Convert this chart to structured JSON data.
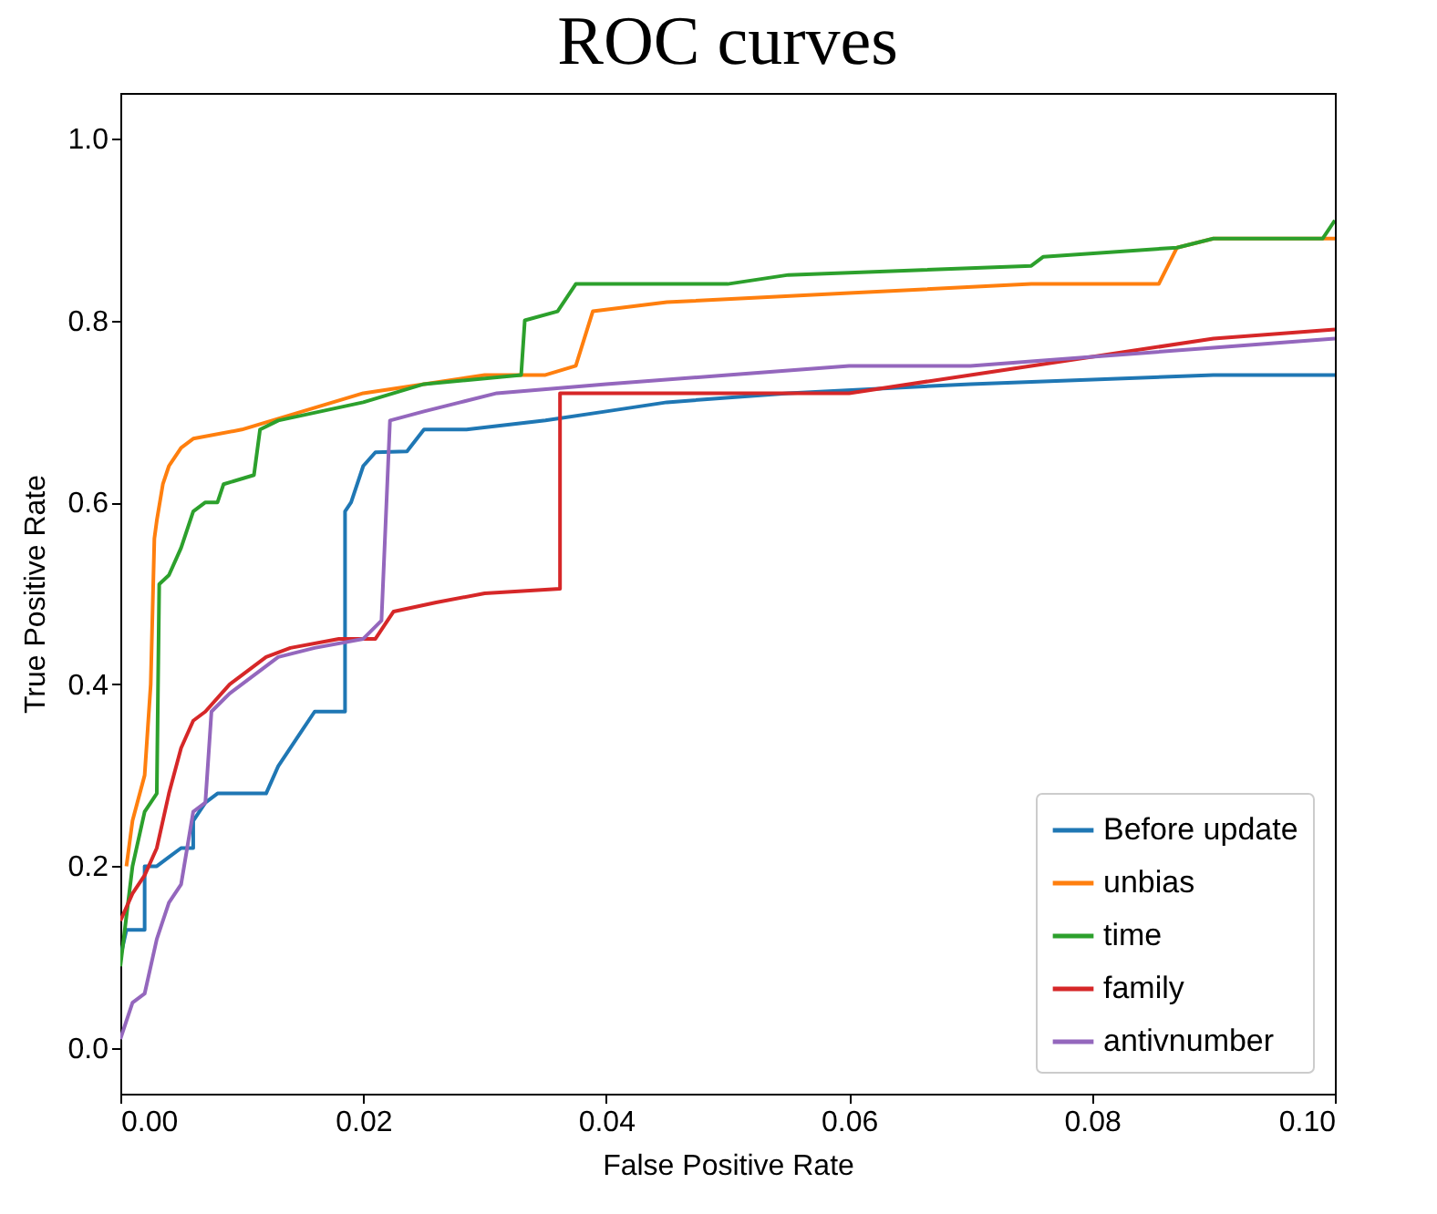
{
  "chart_data": {
    "type": "line",
    "title": "ROC curves",
    "xlabel": "False Positive Rate",
    "ylabel": "True Positive Rate",
    "xlim": [
      0,
      0.1
    ],
    "ylim": [
      -0.05,
      1.05
    ],
    "xticks": [
      {
        "value": 0,
        "label": "0.00"
      },
      {
        "value": 0.02,
        "label": "0.02"
      },
      {
        "value": 0.04,
        "label": "0.04"
      },
      {
        "value": 0.06,
        "label": "0.06"
      },
      {
        "value": 0.08,
        "label": "0.08"
      },
      {
        "value": 0.1,
        "label": "0.10"
      }
    ],
    "yticks": [
      {
        "value": 0,
        "label": "0.0"
      },
      {
        "value": 0.2,
        "label": "0.2"
      },
      {
        "value": 0.4,
        "label": "0.4"
      },
      {
        "value": 0.6,
        "label": "0.6"
      },
      {
        "value": 0.8,
        "label": "0.8"
      },
      {
        "value": 1,
        "label": "1.0"
      }
    ],
    "grid": false,
    "legend": "bottom right",
    "line_style": "solid",
    "marker": "none",
    "series": [
      {
        "name": "Before update",
        "color": "#1f77b4",
        "x": [
          0,
          0.0005,
          0.002,
          0.002,
          0.003,
          0.004,
          0.005,
          0.006,
          0.006,
          0.007,
          0.008,
          0.012,
          0.013,
          0.014,
          0.015,
          0.016,
          0.0185,
          0.0185,
          0.019,
          0.02,
          0.021,
          0.0236,
          0.025,
          0.0285,
          0.035,
          0.04,
          0.045,
          0.055,
          0.07,
          0.09,
          0.1
        ],
        "values": [
          0.1,
          0.13,
          0.13,
          0.2,
          0.2,
          0.21,
          0.22,
          0.22,
          0.25,
          0.27,
          0.28,
          0.28,
          0.31,
          0.33,
          0.35,
          0.37,
          0.37,
          0.59,
          0.6,
          0.64,
          0.655,
          0.656,
          0.68,
          0.68,
          0.69,
          0.7,
          0.71,
          0.72,
          0.73,
          0.74,
          0.74
        ]
      },
      {
        "name": "unbias",
        "color": "#ff7f0e",
        "x": [
          0.0005,
          0.001,
          0.002,
          0.0025,
          0.0028,
          0.003,
          0.0035,
          0.004,
          0.005,
          0.006,
          0.01,
          0.015,
          0.02,
          0.025,
          0.03,
          0.035,
          0.0375,
          0.0389,
          0.045,
          0.06,
          0.075,
          0.0855,
          0.087,
          0.09,
          0.1
        ],
        "values": [
          0.2,
          0.25,
          0.3,
          0.4,
          0.56,
          0.58,
          0.62,
          0.64,
          0.66,
          0.67,
          0.68,
          0.7,
          0.72,
          0.73,
          0.74,
          0.74,
          0.75,
          0.81,
          0.82,
          0.83,
          0.84,
          0.84,
          0.88,
          0.89,
          0.89
        ]
      },
      {
        "name": "time",
        "color": "#2ca02c",
        "x": [
          0,
          0.001,
          0.002,
          0.003,
          0.0032,
          0.004,
          0.005,
          0.006,
          0.007,
          0.008,
          0.0085,
          0.011,
          0.0115,
          0.013,
          0.02,
          0.025,
          0.033,
          0.0333,
          0.036,
          0.0375,
          0.05,
          0.055,
          0.075,
          0.076,
          0.087,
          0.09,
          0.099,
          0.1
        ],
        "values": [
          0.09,
          0.2,
          0.26,
          0.28,
          0.51,
          0.52,
          0.55,
          0.59,
          0.6,
          0.6,
          0.62,
          0.63,
          0.68,
          0.69,
          0.71,
          0.73,
          0.74,
          0.8,
          0.81,
          0.84,
          0.84,
          0.85,
          0.86,
          0.87,
          0.88,
          0.89,
          0.89,
          0.91
        ]
      },
      {
        "name": "family",
        "color": "#d62728",
        "x": [
          0,
          0.001,
          0.002,
          0.003,
          0.004,
          0.005,
          0.006,
          0.007,
          0.009,
          0.01,
          0.012,
          0.014,
          0.018,
          0.021,
          0.0225,
          0.026,
          0.03,
          0.0362,
          0.0362,
          0.06,
          0.07,
          0.08,
          0.09,
          0.1
        ],
        "values": [
          0.14,
          0.17,
          0.19,
          0.22,
          0.28,
          0.33,
          0.36,
          0.37,
          0.4,
          0.41,
          0.43,
          0.44,
          0.45,
          0.45,
          0.48,
          0.49,
          0.5,
          0.505,
          0.72,
          0.72,
          0.74,
          0.76,
          0.78,
          0.79
        ]
      },
      {
        "name": "antivnumber",
        "color": "#9467bd",
        "x": [
          0,
          0.001,
          0.002,
          0.003,
          0.004,
          0.005,
          0.006,
          0.007,
          0.0075,
          0.009,
          0.011,
          0.013,
          0.016,
          0.02,
          0.0215,
          0.0222,
          0.025,
          0.028,
          0.031,
          0.04,
          0.05,
          0.06,
          0.07,
          0.08,
          0.09,
          0.1
        ],
        "values": [
          0.01,
          0.05,
          0.06,
          0.12,
          0.16,
          0.18,
          0.26,
          0.27,
          0.37,
          0.39,
          0.41,
          0.43,
          0.44,
          0.45,
          0.47,
          0.69,
          0.7,
          0.71,
          0.72,
          0.73,
          0.74,
          0.75,
          0.75,
          0.76,
          0.77,
          0.78
        ]
      }
    ]
  }
}
